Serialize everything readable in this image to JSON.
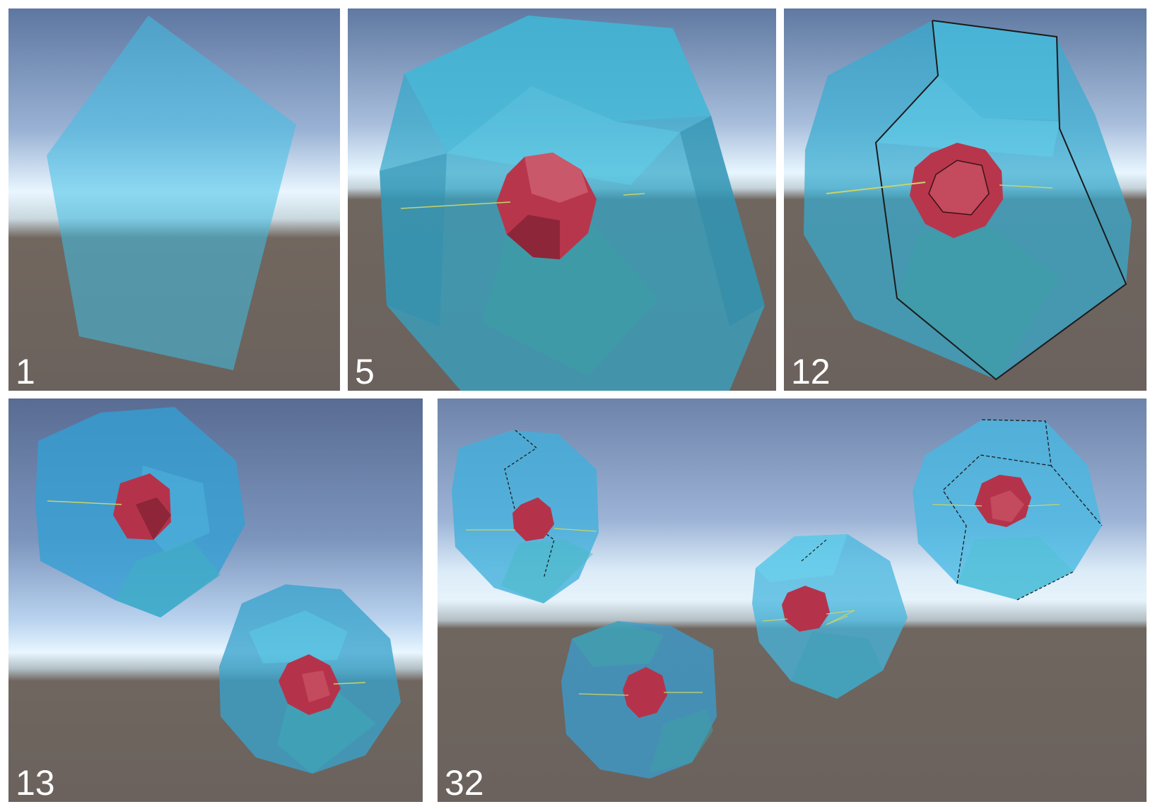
{
  "panels": [
    {
      "id": "p1",
      "label": "1"
    },
    {
      "id": "p5",
      "label": "5"
    },
    {
      "id": "p12",
      "label": "12"
    },
    {
      "id": "p13",
      "label": "13"
    },
    {
      "id": "p32",
      "label": "32"
    }
  ],
  "colors": {
    "sky_top": "#5a6f97",
    "sky_horizon": "#e8f6ff",
    "ground": "#6f6661",
    "cell_shell": "#3fb6da",
    "nucleus": "#b5334a",
    "edge_line": "#1b1b1b",
    "filament": "#c8d46a"
  }
}
